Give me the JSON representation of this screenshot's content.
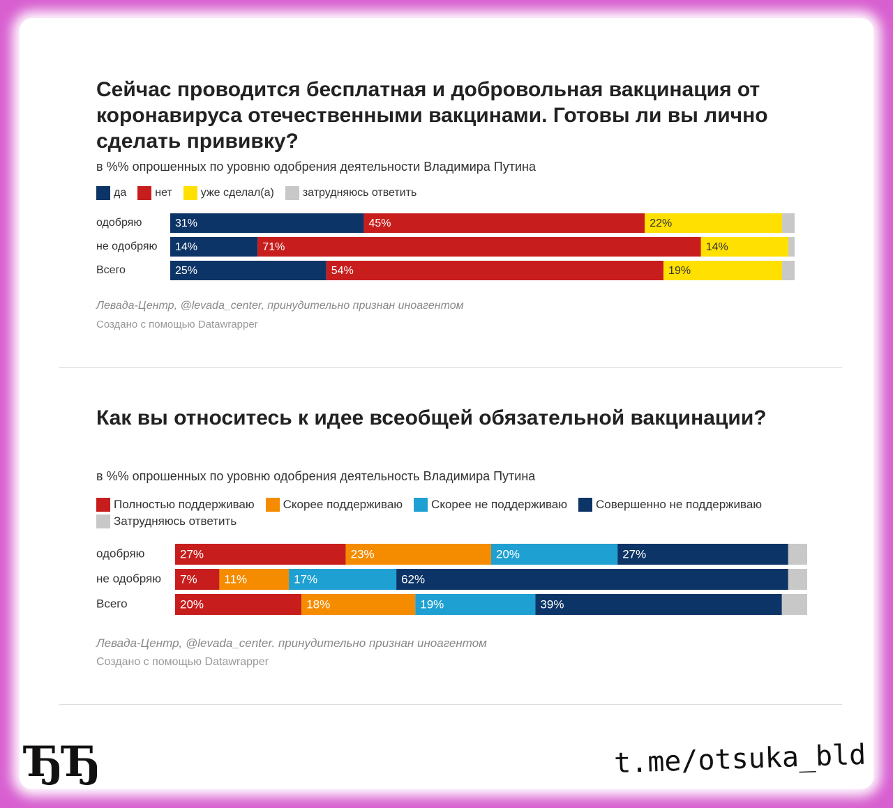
{
  "chart_data": [
    {
      "type": "bar",
      "orientation": "horizontal",
      "stacked": true,
      "title": "Сейчас проводится бесплатная и добровольная вакцинация от коронавируса отечественными вакцинами. Готовы ли вы лично сделать прививку?",
      "subtitle": "в %% опрошенных по уровню одобрения деятельности Владимира Путина",
      "categories": [
        "одобряю",
        "не одобряю",
        "Всего"
      ],
      "series": [
        {
          "name": "да",
          "color": "#0d3466",
          "values": [
            31,
            14,
            25
          ],
          "value_labels": [
            "31%",
            "14%",
            "25%"
          ]
        },
        {
          "name": "нет",
          "color": "#c71e1d",
          "values": [
            45,
            71,
            54
          ],
          "value_labels": [
            "45%",
            "71%",
            "54%"
          ]
        },
        {
          "name": "уже сделал(а)",
          "color": "#ffe000",
          "values": [
            22,
            14,
            19
          ],
          "value_labels": [
            "22%",
            "14%",
            "19%"
          ]
        },
        {
          "name": "затрудняюсь ответить",
          "color": "#c8c8c8",
          "values": [
            2,
            1,
            2
          ]
        }
      ],
      "xlim": [
        0,
        100
      ],
      "legend": "top",
      "source": "Левада-Центр, @levada_center, принудительно признан иноагентом",
      "credit": "Создано с помощью Datawrapper"
    },
    {
      "type": "bar",
      "orientation": "horizontal",
      "stacked": true,
      "title": "Как вы относитесь к идее всеобщей обязательной вакцинации?",
      "subtitle": "в %% опрошенных по уровню одобрения деятельность Владимира Путина",
      "categories": [
        "одобряю",
        "не одобряю",
        "Всего"
      ],
      "series": [
        {
          "name": "Полностью поддерживаю",
          "color": "#c71e1d",
          "values": [
            27,
            7,
            20
          ],
          "value_labels": [
            "27%",
            "7%",
            "20%"
          ]
        },
        {
          "name": "Скорее поддерживаю",
          "color": "#f58c00",
          "values": [
            23,
            11,
            18
          ],
          "value_labels": [
            "23%",
            "11%",
            "18%"
          ]
        },
        {
          "name": "Скорее не поддерживаю",
          "color": "#1fa0d2",
          "values": [
            20,
            17,
            19
          ],
          "value_labels": [
            "20%",
            "17%",
            "19%"
          ]
        },
        {
          "name": "Совершенно не поддерживаю",
          "color": "#0d3466",
          "values": [
            27,
            62,
            39
          ],
          "value_labels": [
            "27%",
            "62%",
            "39%"
          ]
        },
        {
          "name": "Затрудняюсь ответить",
          "color": "#c8c8c8",
          "values": [
            3,
            3,
            4
          ]
        }
      ],
      "xlim": [
        0,
        100
      ],
      "legend": "top",
      "source": "Левада-Центр, @levada_center. принудительно признан иноагентом",
      "credit": "Создано с помощью Datawrapper"
    }
  ],
  "branding": {
    "logo": "ЂЂ",
    "channel": "t.me/otsuka_bld"
  }
}
